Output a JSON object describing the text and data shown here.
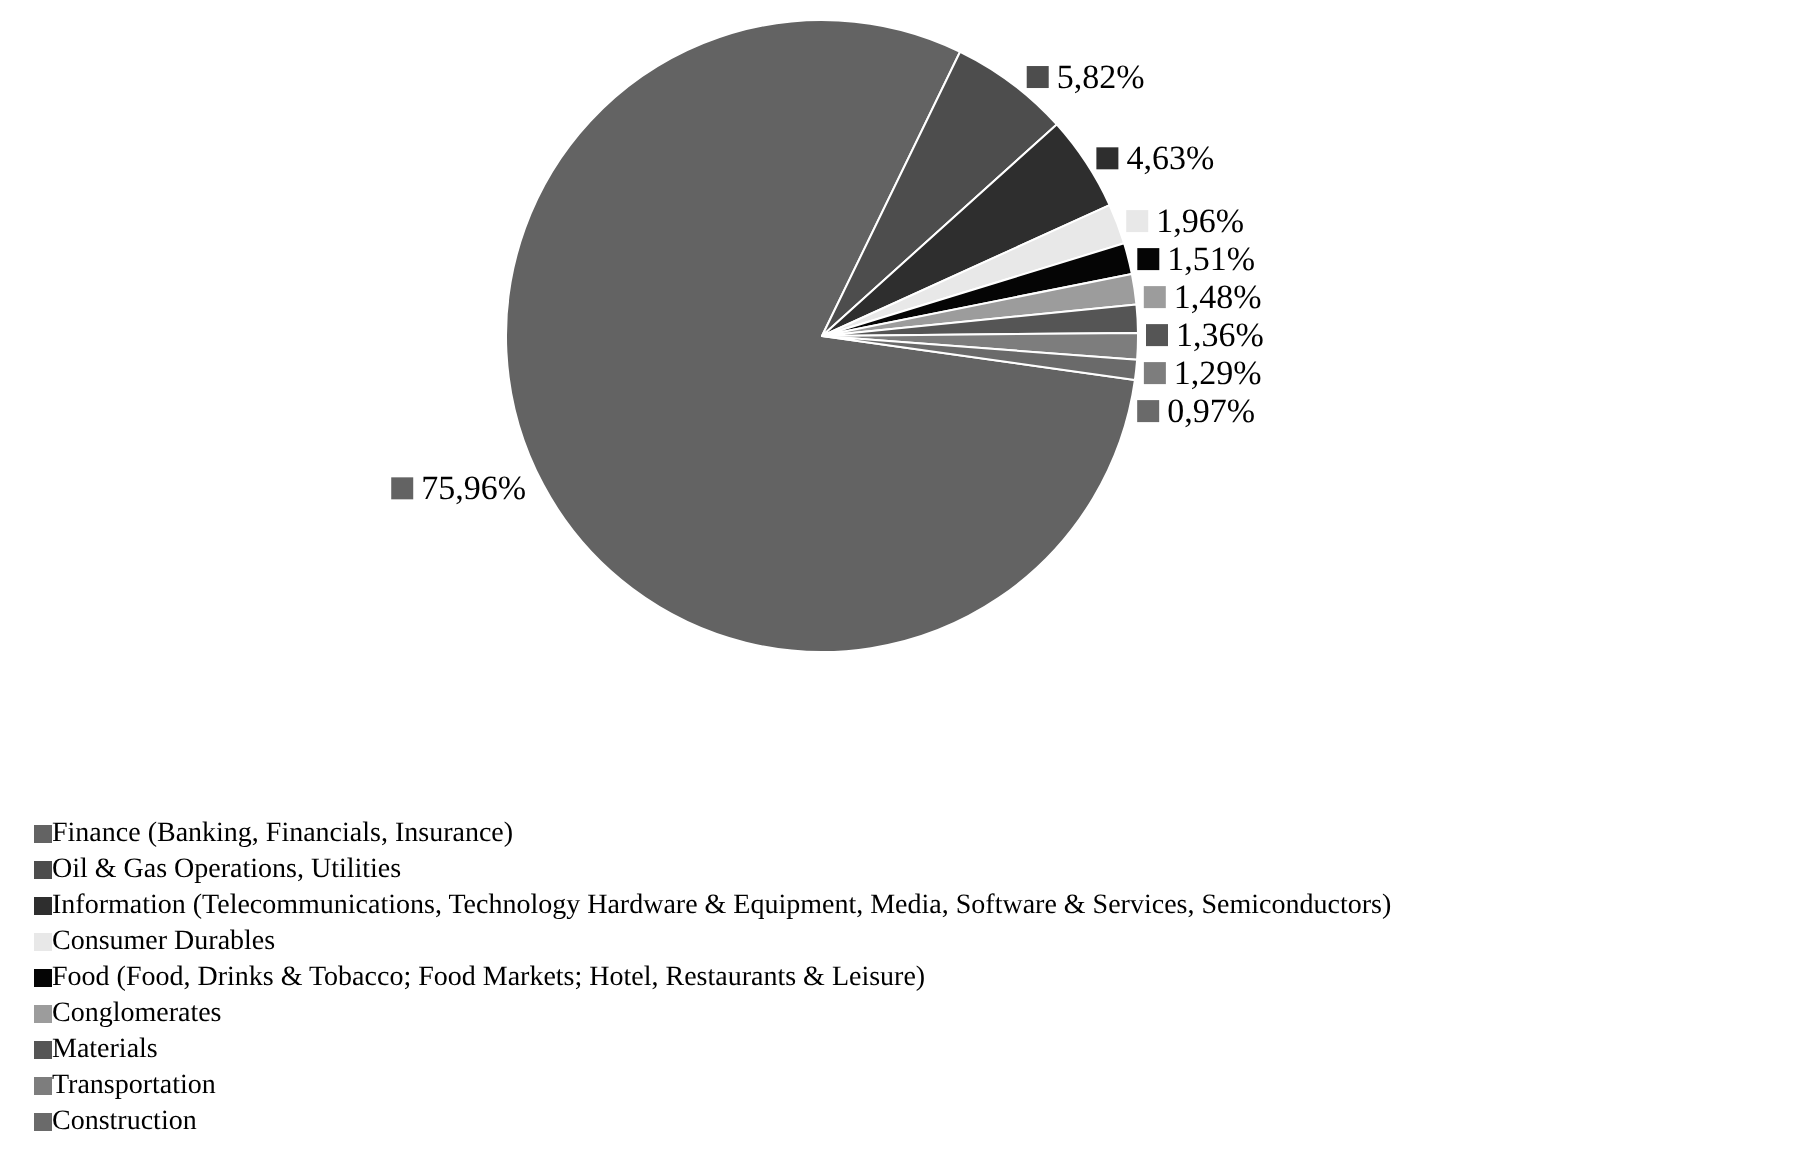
{
  "chart_data": {
    "type": "pie",
    "categories": [
      "Finance (Banking, Financials, Insurance)",
      "Oil & Gas Operations, Utilities",
      "Information (Telecommunications, Technology Hardware & Equipment, Media, Software & Services, Semiconductors)",
      "Consumer Durables",
      "Food (Food, Drinks & Tobacco; Food Markets; Hotel, Restaurants & Leisure)",
      "Conglomerates",
      "Materials",
      "Transportation",
      "Construction"
    ],
    "values": [
      75.96,
      5.82,
      4.63,
      1.96,
      1.51,
      1.48,
      1.36,
      1.29,
      0.97
    ],
    "value_labels": [
      "75,96%",
      "5,82%",
      "4,63%",
      "1,96%",
      "1,51%",
      "1,48%",
      "1,36%",
      "1,29%",
      "0,97%"
    ],
    "colors": [
      "#636363",
      "#4d4d4d",
      "#2e2e2e",
      "#e8e8e8",
      "#050505",
      "#9c9c9c",
      "#555555",
      "#7d7d7d",
      "#6a6a6a"
    ],
    "legend": "bottom left"
  }
}
